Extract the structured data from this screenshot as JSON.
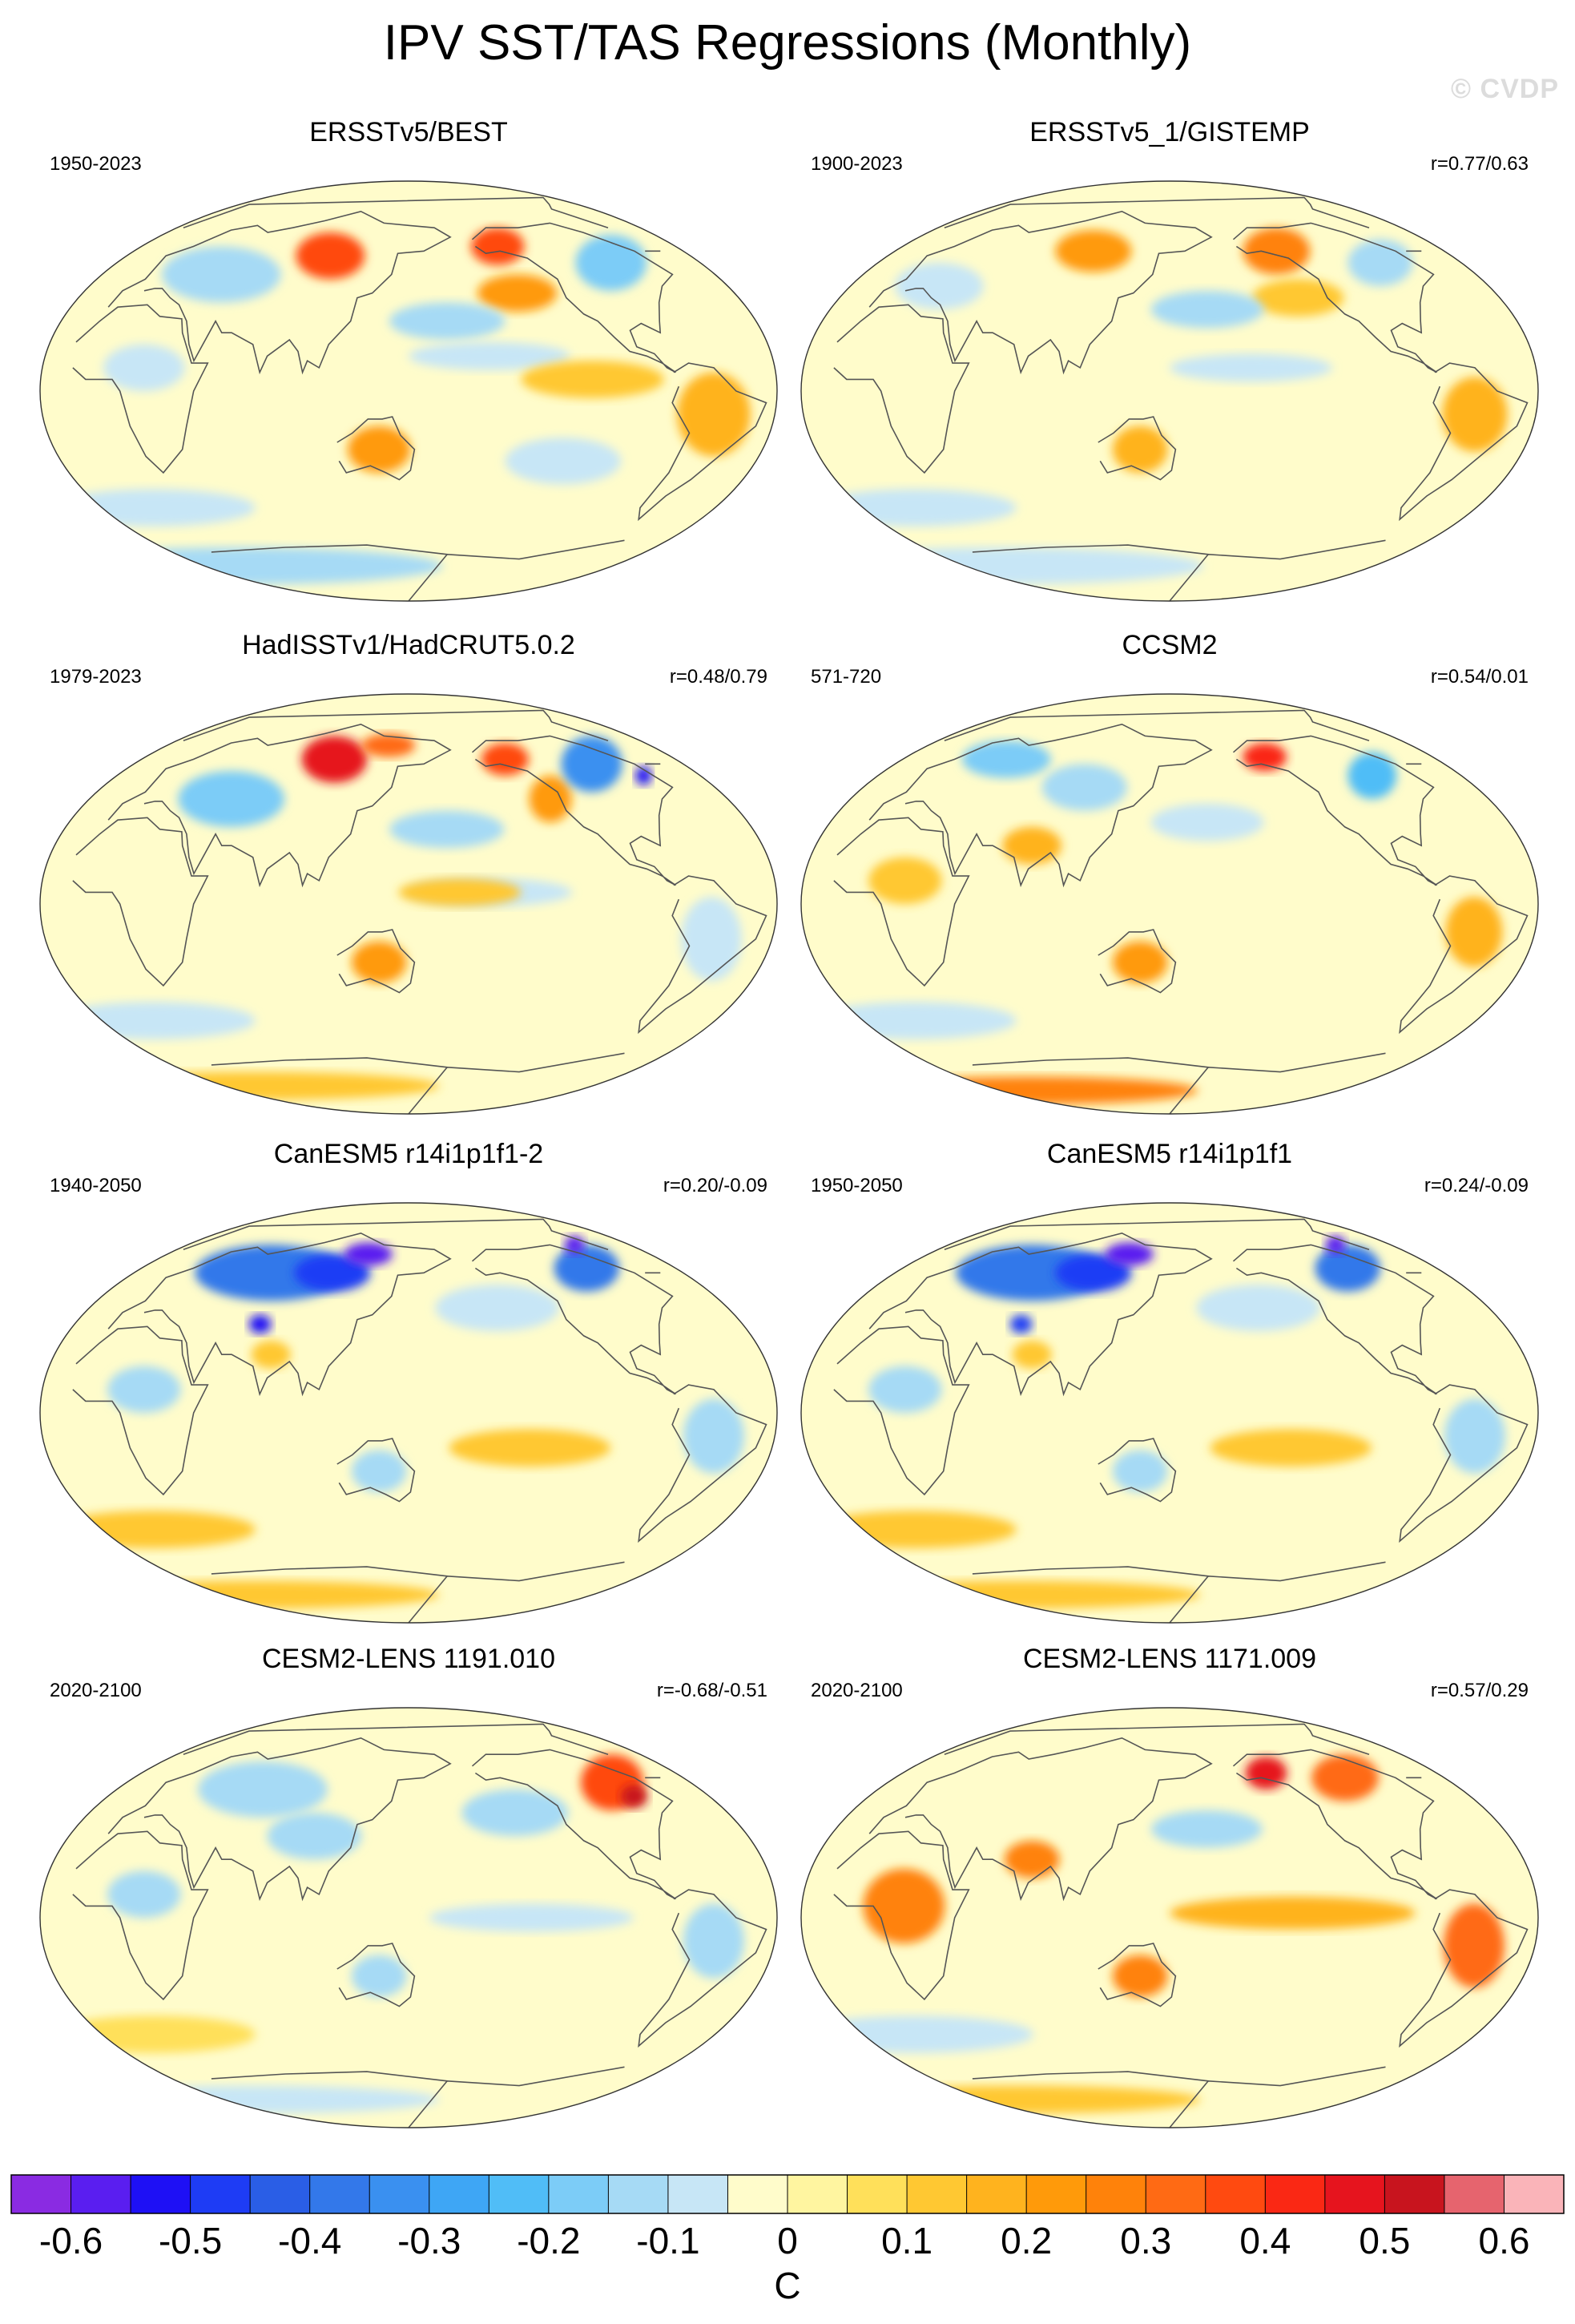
{
  "title": "IPV SST/TAS Regressions (Monthly)",
  "watermark": "© CVDP",
  "chart_data": {
    "type": "heatmap",
    "projection": "global map (Robinson-like ellipse)",
    "units": "C",
    "panels": [
      {
        "title": "ERSSTv5/BEST",
        "period": "1950-2023",
        "correlation": "",
        "features": [
          {
            "lon": 100,
            "lat": 58,
            "value": 0.35,
            "rx": 22,
            "ry": 10
          },
          {
            "lon": -150,
            "lat": 62,
            "value": 0.35,
            "rx": 18,
            "ry": 8
          },
          {
            "lon": -150,
            "lat": 42,
            "value": 0.2,
            "rx": 22,
            "ry": 8
          },
          {
            "lon": -85,
            "lat": 55,
            "value": -0.2,
            "rx": 22,
            "ry": 12
          },
          {
            "lon": 40,
            "lat": 50,
            "value": -0.15,
            "rx": 35,
            "ry": 12
          },
          {
            "lon": 135,
            "lat": -25,
            "value": 0.2,
            "rx": 16,
            "ry": 10
          },
          {
            "lon": -60,
            "lat": -10,
            "value": 0.15,
            "rx": 18,
            "ry": 18
          },
          {
            "lon": 170,
            "lat": 30,
            "value": -0.12,
            "rx": 30,
            "ry": 8
          },
          {
            "lon": -170,
            "lat": 15,
            "value": -0.1,
            "rx": 40,
            "ry": 6
          },
          {
            "lon": 0,
            "lat": -50,
            "value": -0.1,
            "rx": 60,
            "ry": 8
          },
          {
            "lon": -130,
            "lat": -30,
            "value": -0.1,
            "rx": 30,
            "ry": 10
          },
          {
            "lon": 0,
            "lat": -75,
            "value": -0.15,
            "rx": 180,
            "ry": 8
          },
          {
            "lon": -120,
            "lat": 5,
            "value": 0.12,
            "rx": 35,
            "ry": 8
          },
          {
            "lon": 20,
            "lat": 10,
            "value": -0.1,
            "rx": 20,
            "ry": 10
          }
        ]
      },
      {
        "title": "ERSSTv5_1/GISTEMP",
        "period": "1900-2023",
        "correlation": "r=0.77/0.63",
        "features": [
          {
            "lon": 100,
            "lat": 60,
            "value": 0.2,
            "rx": 25,
            "ry": 9
          },
          {
            "lon": -140,
            "lat": 60,
            "value": 0.25,
            "rx": 22,
            "ry": 10
          },
          {
            "lon": -140,
            "lat": 40,
            "value": 0.12,
            "rx": 25,
            "ry": 8
          },
          {
            "lon": -80,
            "lat": 55,
            "value": -0.15,
            "rx": 20,
            "ry": 10
          },
          {
            "lon": 170,
            "lat": 35,
            "value": -0.12,
            "rx": 30,
            "ry": 8
          },
          {
            "lon": -170,
            "lat": 10,
            "value": -0.08,
            "rx": 40,
            "ry": 6
          },
          {
            "lon": -60,
            "lat": -10,
            "value": 0.15,
            "rx": 16,
            "ry": 16
          },
          {
            "lon": 135,
            "lat": -25,
            "value": 0.15,
            "rx": 14,
            "ry": 10
          },
          {
            "lon": 0,
            "lat": -50,
            "value": -0.08,
            "rx": 60,
            "ry": 8
          },
          {
            "lon": 20,
            "lat": 45,
            "value": -0.08,
            "rx": 25,
            "ry": 10
          },
          {
            "lon": 0,
            "lat": -75,
            "value": -0.1,
            "rx": 180,
            "ry": 8
          }
        ]
      },
      {
        "title": "HadISSTv1/HadCRUT5.0.2",
        "period": "1979-2023",
        "correlation": "r=0.48/0.79",
        "features": [
          {
            "lon": 100,
            "lat": 62,
            "value": 0.45,
            "rx": 22,
            "ry": 10
          },
          {
            "lon": 135,
            "lat": 68,
            "value": 0.3,
            "rx": 20,
            "ry": 5
          },
          {
            "lon": -145,
            "lat": 62,
            "value": 0.35,
            "rx": 16,
            "ry": 7
          },
          {
            "lon": -130,
            "lat": 45,
            "value": 0.2,
            "rx": 12,
            "ry": 10
          },
          {
            "lon": -90,
            "lat": 60,
            "value": -0.35,
            "rx": 20,
            "ry": 12
          },
          {
            "lon": -65,
            "lat": 55,
            "value": -0.55,
            "rx": 5,
            "ry": 4
          },
          {
            "lon": 50,
            "lat": 45,
            "value": -0.2,
            "rx": 30,
            "ry": 12
          },
          {
            "lon": 170,
            "lat": 32,
            "value": -0.12,
            "rx": 30,
            "ry": 8
          },
          {
            "lon": -170,
            "lat": 5,
            "value": -0.1,
            "rx": 40,
            "ry": 6
          },
          {
            "lon": 135,
            "lat": -25,
            "value": 0.2,
            "rx": 14,
            "ry": 9
          },
          {
            "lon": -60,
            "lat": -15,
            "value": -0.1,
            "rx": 15,
            "ry": 18
          },
          {
            "lon": 0,
            "lat": -50,
            "value": -0.1,
            "rx": 60,
            "ry": 8
          },
          {
            "lon": 0,
            "lat": -78,
            "value": 0.12,
            "rx": 180,
            "ry": 6
          },
          {
            "lon": 175,
            "lat": 5,
            "value": 0.12,
            "rx": 30,
            "ry": 6
          }
        ]
      },
      {
        "title": "CCSM2",
        "period": "571-720",
        "correlation": "r=0.54/0.01",
        "features": [
          {
            "lon": 40,
            "lat": 62,
            "value": -0.2,
            "rx": 30,
            "ry": 8
          },
          {
            "lon": 100,
            "lat": 50,
            "value": -0.12,
            "rx": 25,
            "ry": 10
          },
          {
            "lon": -145,
            "lat": 63,
            "value": 0.4,
            "rx": 15,
            "ry": 6
          },
          {
            "lon": -85,
            "lat": 55,
            "value": -0.25,
            "rx": 15,
            "ry": 10
          },
          {
            "lon": 80,
            "lat": 25,
            "value": 0.15,
            "rx": 15,
            "ry": 8
          },
          {
            "lon": 135,
            "lat": -25,
            "value": 0.2,
            "rx": 14,
            "ry": 9
          },
          {
            "lon": -60,
            "lat": -12,
            "value": 0.15,
            "rx": 14,
            "ry": 15
          },
          {
            "lon": 20,
            "lat": 10,
            "value": 0.12,
            "rx": 18,
            "ry": 10
          },
          {
            "lon": 170,
            "lat": 35,
            "value": -0.1,
            "rx": 30,
            "ry": 8
          },
          {
            "lon": 0,
            "lat": -50,
            "value": -0.08,
            "rx": 60,
            "ry": 8
          },
          {
            "lon": 0,
            "lat": -80,
            "value": 0.25,
            "rx": 180,
            "ry": 6
          }
        ]
      },
      {
        "title": "CanESM5 r14i1p1f1-2",
        "period": "1940-2050",
        "correlation": "r=0.20/-0.09",
        "features": [
          {
            "lon": 60,
            "lat": 60,
            "value": -0.4,
            "rx": 50,
            "ry": 12
          },
          {
            "lon": 100,
            "lat": 60,
            "value": -0.5,
            "rx": 25,
            "ry": 8
          },
          {
            "lon": 120,
            "lat": 68,
            "value": -0.6,
            "rx": 18,
            "ry": 5
          },
          {
            "lon": 70,
            "lat": 38,
            "value": -0.55,
            "rx": 6,
            "ry": 4
          },
          {
            "lon": -90,
            "lat": 62,
            "value": -0.4,
            "rx": 22,
            "ry": 10
          },
          {
            "lon": -75,
            "lat": 72,
            "value": -0.6,
            "rx": 8,
            "ry": 4
          },
          {
            "lon": 80,
            "lat": 25,
            "value": 0.12,
            "rx": 10,
            "ry": 6
          },
          {
            "lon": -160,
            "lat": 45,
            "value": -0.1,
            "rx": 35,
            "ry": 10
          },
          {
            "lon": -60,
            "lat": -10,
            "value": -0.15,
            "rx": 15,
            "ry": 16
          },
          {
            "lon": 135,
            "lat": -25,
            "value": -0.15,
            "rx": 14,
            "ry": 9
          },
          {
            "lon": 20,
            "lat": 10,
            "value": -0.15,
            "rx": 18,
            "ry": 10
          },
          {
            "lon": 0,
            "lat": -50,
            "value": 0.1,
            "rx": 60,
            "ry": 8
          },
          {
            "lon": 0,
            "lat": -78,
            "value": 0.1,
            "rx": 180,
            "ry": 6
          },
          {
            "lon": -150,
            "lat": -15,
            "value": 0.1,
            "rx": 40,
            "ry": 8
          }
        ]
      },
      {
        "title": "CanESM5 r14i1p1f1",
        "period": "1950-2050",
        "correlation": "r=0.24/-0.09",
        "features": [
          {
            "lon": 60,
            "lat": 60,
            "value": -0.4,
            "rx": 50,
            "ry": 12
          },
          {
            "lon": 100,
            "lat": 60,
            "value": -0.5,
            "rx": 25,
            "ry": 8
          },
          {
            "lon": 120,
            "lat": 68,
            "value": -0.6,
            "rx": 18,
            "ry": 5
          },
          {
            "lon": 70,
            "lat": 38,
            "value": -0.5,
            "rx": 6,
            "ry": 4
          },
          {
            "lon": -90,
            "lat": 62,
            "value": -0.4,
            "rx": 22,
            "ry": 10
          },
          {
            "lon": -75,
            "lat": 72,
            "value": -0.6,
            "rx": 8,
            "ry": 4
          },
          {
            "lon": 80,
            "lat": 25,
            "value": 0.12,
            "rx": 10,
            "ry": 6
          },
          {
            "lon": -160,
            "lat": 45,
            "value": -0.1,
            "rx": 35,
            "ry": 10
          },
          {
            "lon": -60,
            "lat": -10,
            "value": -0.15,
            "rx": 15,
            "ry": 16
          },
          {
            "lon": 135,
            "lat": -25,
            "value": -0.15,
            "rx": 14,
            "ry": 9
          },
          {
            "lon": 20,
            "lat": 10,
            "value": -0.15,
            "rx": 18,
            "ry": 10
          },
          {
            "lon": 0,
            "lat": -50,
            "value": 0.1,
            "rx": 60,
            "ry": 8
          },
          {
            "lon": 0,
            "lat": -78,
            "value": 0.1,
            "rx": 180,
            "ry": 6
          },
          {
            "lon": -150,
            "lat": -15,
            "value": 0.1,
            "rx": 40,
            "ry": 8
          }
        ]
      },
      {
        "title": "CESM2-LENS 1191.010",
        "period": "2020-2100",
        "correlation": "r=-0.68/-0.51",
        "features": [
          {
            "lon": -80,
            "lat": 58,
            "value": 0.35,
            "rx": 20,
            "ry": 12
          },
          {
            "lon": -75,
            "lat": 52,
            "value": 0.5,
            "rx": 8,
            "ry": 5
          },
          {
            "lon": 60,
            "lat": 55,
            "value": -0.15,
            "rx": 40,
            "ry": 12
          },
          {
            "lon": 100,
            "lat": 35,
            "value": -0.12,
            "rx": 25,
            "ry": 10
          },
          {
            "lon": -150,
            "lat": 45,
            "value": -0.12,
            "rx": 30,
            "ry": 10
          },
          {
            "lon": -60,
            "lat": -10,
            "value": -0.12,
            "rx": 15,
            "ry": 16
          },
          {
            "lon": 135,
            "lat": -25,
            "value": -0.12,
            "rx": 14,
            "ry": 9
          },
          {
            "lon": 20,
            "lat": 10,
            "value": -0.12,
            "rx": 18,
            "ry": 10
          },
          {
            "lon": 0,
            "lat": -50,
            "value": 0.08,
            "rx": 60,
            "ry": 8
          },
          {
            "lon": -150,
            "lat": 0,
            "value": -0.08,
            "rx": 50,
            "ry": 6
          },
          {
            "lon": 0,
            "lat": -78,
            "value": -0.1,
            "rx": 180,
            "ry": 6
          }
        ]
      },
      {
        "title": "CESM2-LENS 1171.009",
        "period": "2020-2100",
        "correlation": "r=0.57/0.29",
        "features": [
          {
            "lon": -145,
            "lat": 62,
            "value": 0.45,
            "rx": 14,
            "ry": 7
          },
          {
            "lon": -95,
            "lat": 60,
            "value": 0.3,
            "rx": 22,
            "ry": 10
          },
          {
            "lon": -60,
            "lat": -12,
            "value": 0.3,
            "rx": 15,
            "ry": 18
          },
          {
            "lon": 20,
            "lat": 5,
            "value": 0.25,
            "rx": 20,
            "ry": 16
          },
          {
            "lon": 80,
            "lat": 25,
            "value": 0.25,
            "rx": 14,
            "ry": 8
          },
          {
            "lon": 135,
            "lat": -25,
            "value": 0.25,
            "rx": 14,
            "ry": 9
          },
          {
            "lon": -150,
            "lat": 2,
            "value": 0.15,
            "rx": 60,
            "ry": 7
          },
          {
            "lon": 170,
            "lat": 38,
            "value": -0.15,
            "rx": 30,
            "ry": 8
          },
          {
            "lon": 0,
            "lat": -50,
            "value": -0.1,
            "rx": 70,
            "ry": 8
          },
          {
            "lon": 0,
            "lat": -78,
            "value": 0.12,
            "rx": 180,
            "ry": 6
          }
        ]
      }
    ],
    "colorbar": {
      "label": "C",
      "levels": [
        -0.65,
        -0.6,
        -0.55,
        -0.5,
        -0.45,
        -0.4,
        -0.35,
        -0.3,
        -0.25,
        -0.2,
        -0.15,
        -0.1,
        -0.05,
        0,
        0.05,
        0.1,
        0.15,
        0.2,
        0.25,
        0.3,
        0.35,
        0.4,
        0.45,
        0.5,
        0.55,
        0.6,
        0.65
      ],
      "colors": [
        "#8a2be2",
        "#5a1ef0",
        "#1e10f5",
        "#1e3cf5",
        "#2a5ee6",
        "#3378ea",
        "#3a90f0",
        "#3ea6f5",
        "#50bdf7",
        "#7cccf7",
        "#a6daf5",
        "#c7e6f6",
        "#fffccb",
        "#fff5a0",
        "#ffe05a",
        "#ffc832",
        "#ffb31e",
        "#ff9a0a",
        "#ff820a",
        "#ff6a14",
        "#ff4a10",
        "#fa2814",
        "#e6141e",
        "#c8141e",
        "#e6646e",
        "#fab4b9"
      ],
      "tick_labels": [
        "-0.6",
        "-0.5",
        "-0.4",
        "-0.3",
        "-0.2",
        "-0.1",
        "0",
        "0.1",
        "0.2",
        "0.3",
        "0.4",
        "0.5",
        "0.6"
      ],
      "tick_values": [
        -0.6,
        -0.5,
        -0.4,
        -0.3,
        -0.2,
        -0.1,
        0,
        0.1,
        0.2,
        0.3,
        0.4,
        0.5,
        0.6
      ]
    }
  }
}
